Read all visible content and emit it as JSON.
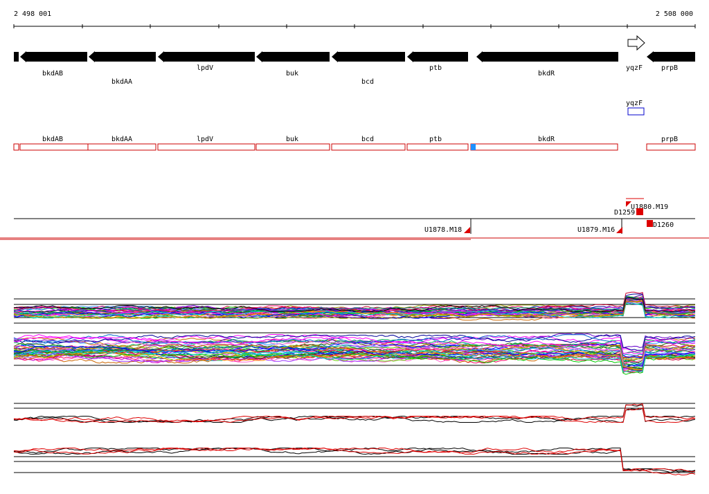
{
  "header": {
    "start_coordinate": "2 498 001",
    "end_coordinate": "2 508 000"
  },
  "genes": [
    {
      "name": "bkdAB",
      "strand": "-",
      "label_row": 0
    },
    {
      "name": "bkdAA",
      "strand": "-",
      "label_row": 1
    },
    {
      "name": "lpdV",
      "strand": "-",
      "label_row": 0
    },
    {
      "name": "buk",
      "strand": "-",
      "label_row": 0
    },
    {
      "name": "bcd",
      "strand": "-",
      "label_row": 1
    },
    {
      "name": "ptb",
      "strand": "-",
      "label_row": 0
    },
    {
      "name": "bkdR",
      "strand": "-",
      "label_row": 0
    },
    {
      "name": "yqzF",
      "strand": "+",
      "label_row": 0
    },
    {
      "name": "prpB",
      "strand": "-",
      "label_row": 0
    }
  ],
  "small_feature": {
    "name": "yqzF"
  },
  "feature_boxes": [
    "bkdAB",
    "bkdAA",
    "lpdV",
    "buk",
    "bcd",
    "ptb",
    "bkdR",
    "prpB"
  ],
  "probes": {
    "U1878_M18": "U1878.M18",
    "U1879_M16": "U1879.M16",
    "U1880_M19": "U1880.M19",
    "D1259": "D1259",
    "D1260": "D1260"
  },
  "colors": {
    "gene_arrow": "#000000",
    "feature_box": "#cc0000",
    "feature_highlight": "#1e90ff",
    "small_feature": "#0000cc",
    "probe_marker": "#dd0000",
    "baseline": "#000000",
    "profile_highlight": "#dd0000"
  }
}
